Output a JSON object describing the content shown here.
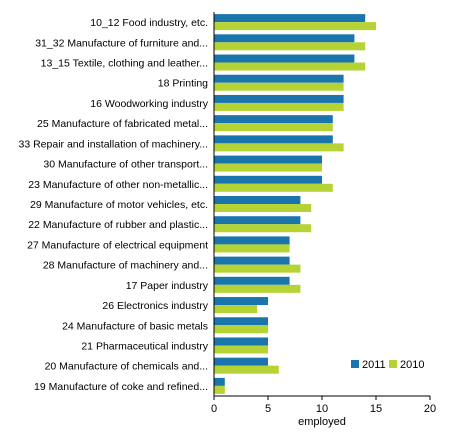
{
  "chart_data": {
    "type": "bar",
    "orientation": "horizontal",
    "categories": [
      "10_12 Food industry, etc.",
      "31_32 Manufacture of furniture and...",
      "13_15 Textile, clothing and  leather...",
      "18 Printing",
      "16 Woodworking industry",
      "25 Manufacture of fabricated metal...",
      "33 Repair and installation of machinery...",
      "30 Manufacture of other transport...",
      "23 Manufacture of other non-metallic...",
      "29 Manufacture of motor vehicles, etc.",
      "22 Manufacture of rubber and plastic...",
      "27 Manufacture of electrical equipment",
      "28 Manufacture of machinery and...",
      "17 Paper industry",
      "26 Electronics industry",
      "24 Manufacture of basic metals",
      "21 Pharmaceutical industry",
      "20 Manufacture of chemicals and...",
      "19 Manufacture of coke and refined..."
    ],
    "series": [
      {
        "name": "2011",
        "color": "#1b75ad",
        "values": [
          14,
          13,
          13,
          12,
          12,
          11,
          11,
          10,
          10,
          8,
          8,
          7,
          7,
          7,
          5,
          5,
          5,
          5,
          1
        ]
      },
      {
        "name": "2010",
        "color": "#b5d334",
        "values": [
          15,
          14,
          14,
          12,
          12,
          11,
          12,
          10,
          11,
          9,
          9,
          7,
          8,
          8,
          4,
          5,
          5,
          6,
          1
        ]
      }
    ],
    "xlabel": "employed",
    "ylabel": "",
    "xlim": [
      0,
      20
    ],
    "xticks": [
      0,
      5,
      10,
      15,
      20
    ],
    "grid": false,
    "legend_position": "bottom-right"
  }
}
